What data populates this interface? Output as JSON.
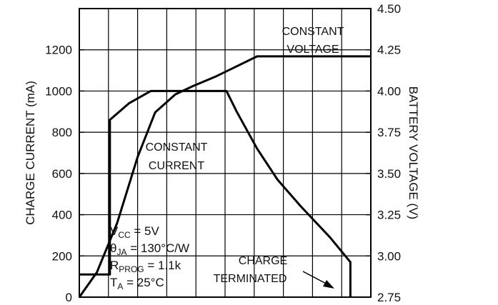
{
  "chart_data": {
    "type": "line",
    "x": {
      "range": [
        0,
        10
      ],
      "grid_lines": 10,
      "tick_labels": []
    },
    "y_left": {
      "label": "CHARGE CURRENT (mA)",
      "range": [
        0,
        1400
      ],
      "ticks": [
        {
          "value": 0,
          "label": "0"
        },
        {
          "value": 200,
          "label": "200"
        },
        {
          "value": 400,
          "label": "400"
        },
        {
          "value": 600,
          "label": "600"
        },
        {
          "value": 800,
          "label": "800"
        },
        {
          "value": 1000,
          "label": "1000"
        },
        {
          "value": 1200,
          "label": "1200"
        }
      ]
    },
    "y_right": {
      "label": "BATTERY VOLTAGE (V)",
      "range": [
        2.75,
        4.5
      ],
      "ticks": [
        {
          "value": 2.75,
          "label": "2.75"
        },
        {
          "value": 3.0,
          "label": "3.00"
        },
        {
          "value": 3.25,
          "label": "3.25"
        },
        {
          "value": 3.5,
          "label": "3.50"
        },
        {
          "value": 3.75,
          "label": "3.75"
        },
        {
          "value": 4.0,
          "label": "4.00"
        },
        {
          "value": 4.25,
          "label": "4.25"
        },
        {
          "value": 4.5,
          "label": "4.50"
        }
      ]
    },
    "grid": true,
    "series": [
      {
        "axis": "left",
        "points": [
          [
            0,
            110
          ],
          [
            1.05,
            110
          ],
          [
            1.05,
            860
          ],
          [
            1.7,
            940
          ],
          [
            2.45,
            1000
          ],
          [
            3.6,
            1000
          ],
          [
            5.05,
            1000
          ],
          [
            5.4,
            900
          ],
          [
            6.1,
            720
          ],
          [
            6.8,
            570
          ],
          [
            7.6,
            440
          ],
          [
            8.6,
            290
          ],
          [
            9.3,
            170
          ],
          [
            9.3,
            0
          ]
        ]
      },
      {
        "axis": "right",
        "points": [
          [
            0,
            2.75
          ],
          [
            0.6,
            2.9
          ],
          [
            1.3,
            3.2
          ],
          [
            2.0,
            3.6
          ],
          [
            2.6,
            3.87
          ],
          [
            3.3,
            3.98
          ],
          [
            3.9,
            4.03
          ],
          [
            4.7,
            4.09
          ],
          [
            5.4,
            4.15
          ],
          [
            6.1,
            4.21
          ],
          [
            10,
            4.21
          ]
        ]
      }
    ],
    "annotations": {
      "constant_voltage": [
        "CONSTANT",
        "VOLTAGE"
      ],
      "constant_current": [
        "CONSTANT",
        "CURRENT"
      ],
      "charge_terminated": [
        "CHARGE",
        "TERMINATED"
      ],
      "conditions": [
        {
          "main": "V",
          "sub": "CC",
          "rest": " = 5V"
        },
        {
          "main": "θ",
          "sub": "JA",
          "rest": " = 130°C/W"
        },
        {
          "main": "R",
          "sub": "PROG",
          "rest": " = 1.1k"
        },
        {
          "main": "T",
          "sub": "A",
          "rest": " = 25°C"
        }
      ]
    }
  }
}
